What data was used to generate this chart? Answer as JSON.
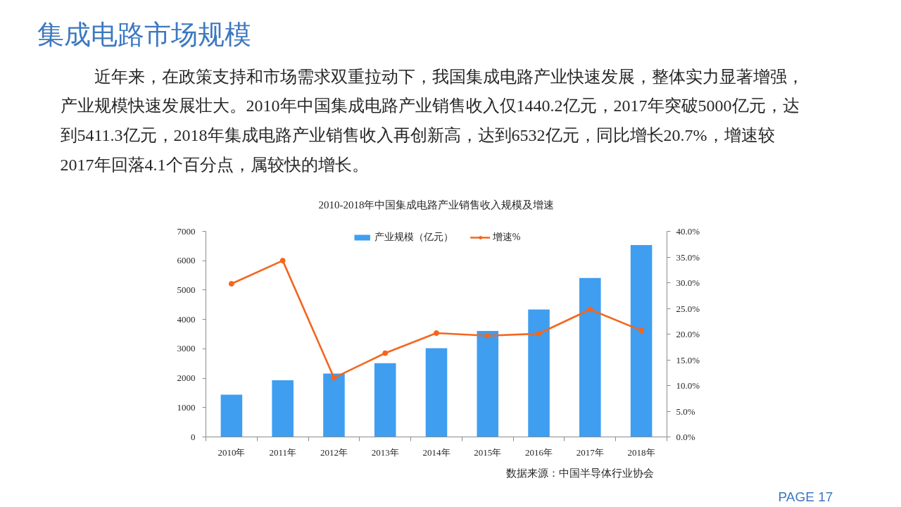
{
  "chart_data": {
    "type": "bar",
    "title": "集成电路市场规模",
    "subtitle": "2010-2018年中国集成电路产业销售收入规模及增速",
    "categories": [
      "2010年",
      "2011年",
      "2012年",
      "2013年",
      "2014年",
      "2015年",
      "2016年",
      "2017年",
      "2018年"
    ],
    "series": [
      {
        "name": "产业规模（亿元）",
        "color": "#3f9ef0",
        "values": [
          1440.2,
          1930,
          2160,
          2510,
          3020,
          3610,
          4340,
          5411.3,
          6532
        ]
      },
      {
        "name": "增速%",
        "type": "line",
        "axis": "y2",
        "color": "#f4661f",
        "marker": "circle",
        "values": [
          29.8,
          34.3,
          11.5,
          16.3,
          20.2,
          19.7,
          20.1,
          24.8,
          20.7
        ]
      }
    ],
    "ylim": [
      0,
      7000
    ],
    "yticks": [
      0,
      1000,
      2000,
      3000,
      4000,
      5000,
      6000,
      7000
    ],
    "y2lim": [
      0,
      40
    ],
    "y2ticks": [
      {
        "value": 0,
        "label": "0.0%"
      },
      {
        "value": 5,
        "label": "5.0%"
      },
      {
        "value": 10,
        "label": "10.0%"
      },
      {
        "value": 15,
        "label": "15.0%"
      },
      {
        "value": 20,
        "label": "20.0%"
      },
      {
        "value": 25,
        "label": "25.0%"
      },
      {
        "value": 30,
        "label": "30.0%"
      },
      {
        "value": 35,
        "label": "35.0%"
      },
      {
        "value": 40,
        "label": "40.0%"
      }
    ],
    "legend": "top",
    "grid": false,
    "annotations": [
      "近年来，在政策支持和市场需求双重拉动下，我国集成电路产业快速发展，整体实力显著增强，产业规模快速发展壮大。2010年中国集成电路产业销售收入仅1440.2亿元，2017年突破5000亿元，达到5411.3亿元，2018年集成电路产业销售收入再创新高，达到6532亿元，同比增长20.7%，增速较2017年回落4.1个百分点，属较快的增长。",
      "数据来源：中国半导体行业协会",
      "PAGE 17"
    ]
  }
}
